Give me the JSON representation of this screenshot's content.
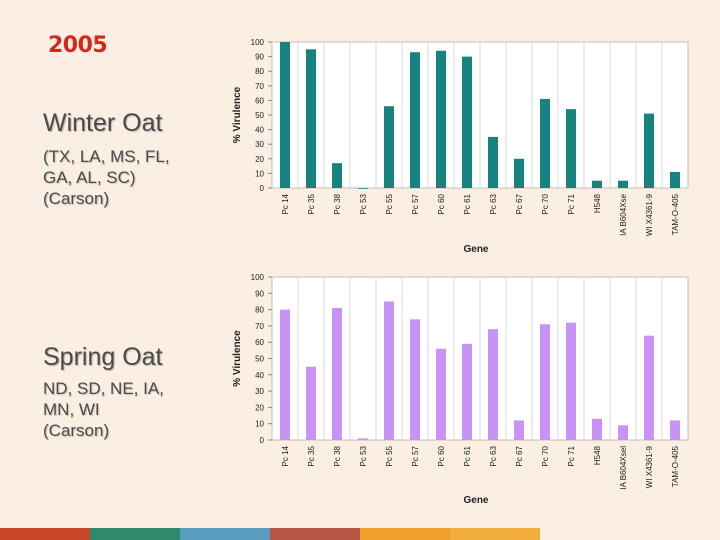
{
  "slide": {
    "year": "2005",
    "winter": {
      "title": "Winter Oat",
      "states": "(TX, LA, MS, FL,",
      "states2": "GA, AL, SC)",
      "source": "(Carson)"
    },
    "spring": {
      "title": "Spring Oat",
      "states": "ND, SD, NE, IA,",
      "states2": "MN, WI",
      "source": "(Carson)"
    },
    "footer_colors": [
      "#c9452a",
      "#2f8a6d",
      "#5b9dbf",
      "#b85446",
      "#f0a02a",
      "#f2ae3d"
    ]
  },
  "chart_data": [
    {
      "type": "bar",
      "name": "winter",
      "color": "#168381",
      "categories": [
        "Pc 14",
        "Pc 35",
        "Pc 38",
        "Pc 53",
        "Pc 55",
        "Pc 57",
        "Pc 60",
        "Pc 61",
        "Pc 63",
        "Pc 67",
        "Pc 70",
        "Pc 71",
        "H548",
        "IA B604Xse",
        "WI X4361-9",
        "TAM-O-405"
      ],
      "values": [
        100,
        95,
        17,
        0,
        56,
        93,
        94,
        90,
        35,
        20,
        61,
        54,
        5,
        5,
        51,
        11
      ],
      "ylabel": "% Virulence",
      "xlabel": "Gene",
      "ylim": [
        0,
        100
      ],
      "yticks": [
        0,
        10,
        20,
        30,
        40,
        50,
        60,
        70,
        80,
        90,
        100
      ]
    },
    {
      "type": "bar",
      "name": "spring",
      "color": "#c993f5",
      "categories": [
        "Pc 14",
        "Pc 35",
        "Pc 38",
        "Pc 53",
        "Pc 55",
        "Pc 57",
        "Pc 60",
        "Pc 61",
        "Pc 63",
        "Pc 67",
        "Pc 70",
        "Pc 71",
        "H548",
        "IA B604Xsel",
        "WI X4361-9",
        "TAM-O-405"
      ],
      "values": [
        80,
        45,
        81,
        1,
        85,
        74,
        56,
        59,
        68,
        12,
        71,
        72,
        13,
        9,
        64,
        12
      ],
      "ylabel": "% Virulence",
      "xlabel": "Gene",
      "ylim": [
        0,
        100
      ],
      "yticks": [
        0,
        10,
        20,
        30,
        40,
        50,
        60,
        70,
        80,
        90,
        100
      ]
    }
  ]
}
